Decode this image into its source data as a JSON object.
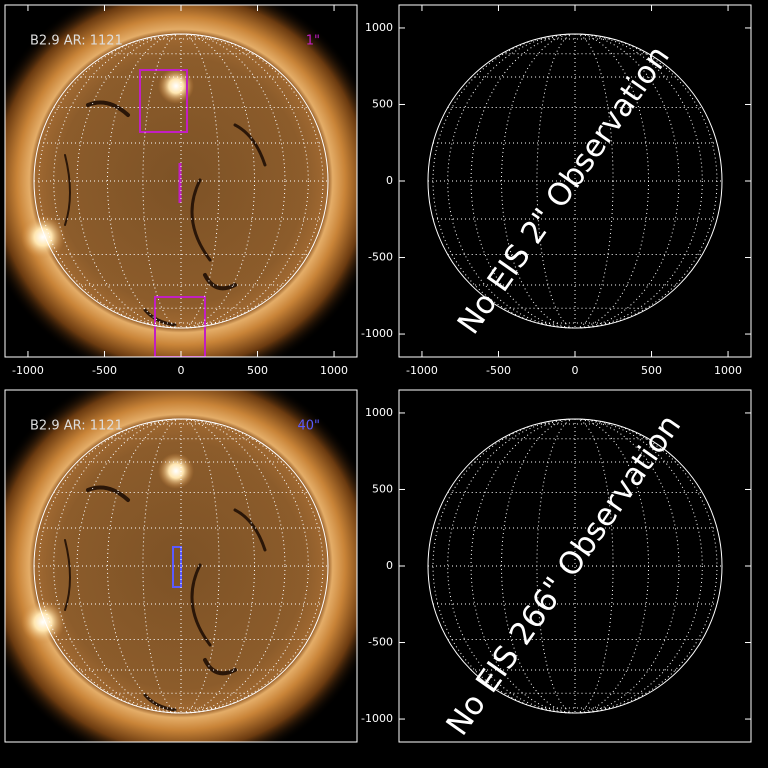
{
  "chart_data": [
    {
      "type": "image",
      "label": "B2.9 AR: 1121",
      "slit_label": "1\"",
      "slit_color": "#c21fc2",
      "xlim": [
        -1150,
        1150
      ],
      "ylim": [
        -1150,
        1150
      ],
      "xticks": [
        -1000,
        -500,
        0,
        500,
        1000
      ]
    },
    {
      "type": "grid",
      "annotation": "No EIS 2\" Observation",
      "xlim": [
        -1150,
        1150
      ],
      "ylim": [
        -1150,
        1150
      ],
      "xticks": [
        -1000,
        -500,
        0,
        500,
        1000
      ],
      "yticks": [
        -1000,
        -500,
        0,
        500,
        1000
      ]
    },
    {
      "type": "image",
      "label": "B2.9 AR: 1121",
      "slit_label": "40\"",
      "slit_color": "#5a5aff",
      "xlim": [
        -1150,
        1150
      ],
      "ylim": [
        -1150,
        1150
      ]
    },
    {
      "type": "grid",
      "annotation": "No EIS 266\" Observation",
      "xlim": [
        -1150,
        1150
      ],
      "ylim": [
        -1150,
        1150
      ],
      "yticks": [
        -1000,
        -500,
        0,
        500,
        1000
      ]
    }
  ]
}
